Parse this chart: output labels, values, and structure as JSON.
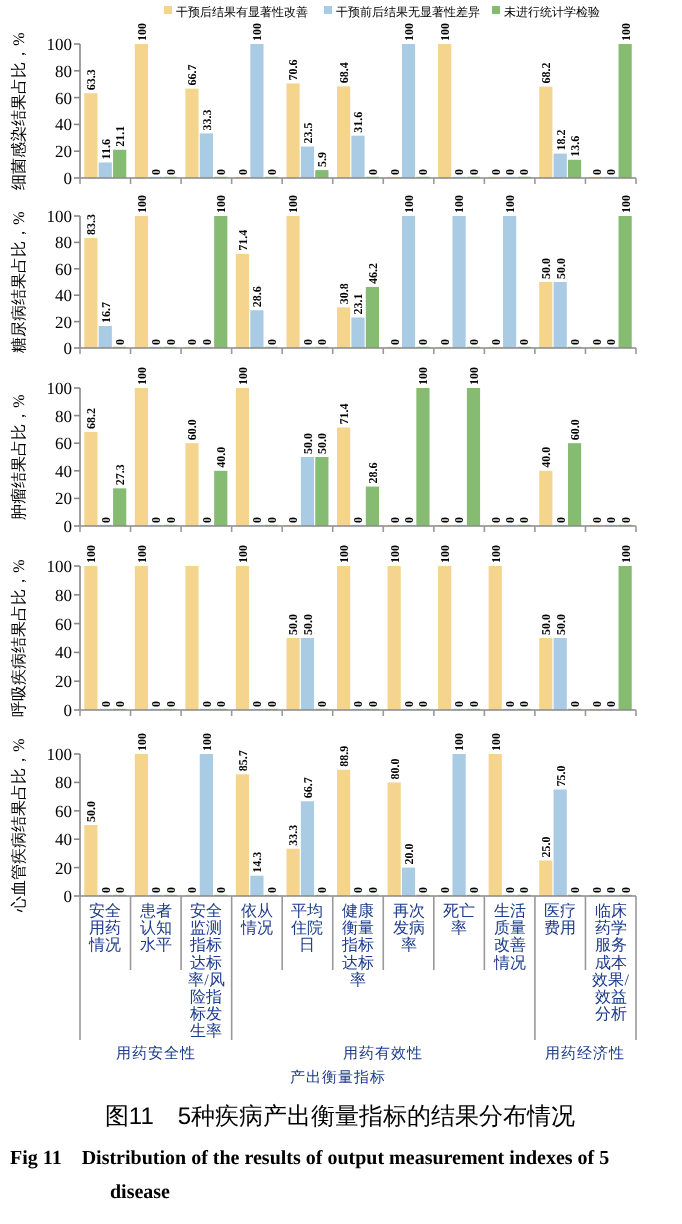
{
  "chart_data": [
    {
      "type": "bar",
      "categories": [
        "安全用药情况",
        "患者认知水平",
        "安全监测指标达标率/风险指标发生率",
        "依从情况",
        "平均住院日",
        "健康衡量指标达标率",
        "再次发病率",
        "死亡率",
        "生活质量改善情况",
        "医疗费用",
        "临床药学服务成本效果/效益分析"
      ],
      "ylabel": "细菌感染结果占比，%",
      "ylim": [
        0,
        100
      ],
      "yticks": [
        0,
        20,
        40,
        60,
        80,
        100
      ],
      "tick_labels": "y",
      "legend": "top",
      "series": [
        {
          "name": "干预后结果有显著性改善",
          "color": "#f5d58e",
          "values": [
            63.3,
            100,
            66.7,
            0,
            70.6,
            68.4,
            0,
            100,
            0,
            68.2,
            0
          ],
          "value_labels": [
            "63.3",
            "100",
            "66.7",
            "0",
            "70.6",
            "68.4",
            "0",
            "100",
            "0",
            "68.2",
            "0"
          ]
        },
        {
          "name": "干预前后结果无显著性差异",
          "color": "#a9cbe4",
          "values": [
            11.6,
            0,
            33.3,
            100,
            23.5,
            31.6,
            100,
            0,
            0,
            18.2,
            0
          ],
          "value_labels": [
            "11.6",
            "0",
            "33.3",
            "100",
            "23.5",
            "31.6",
            "100",
            "0",
            "0",
            "18.2",
            "0"
          ]
        },
        {
          "name": "未进行统计学检验",
          "color": "#86bb72",
          "values": [
            21.1,
            0,
            0,
            0,
            5.9,
            0,
            0,
            0,
            0,
            13.6,
            100
          ],
          "value_labels": [
            "21.1",
            "0",
            "0",
            "0",
            "5.9",
            "0",
            "0",
            "0",
            "0",
            "13.6",
            "100"
          ]
        }
      ]
    },
    {
      "type": "bar",
      "categories": [
        "安全用药情况",
        "患者认知水平",
        "安全监测指标达标率/风险指标发生率",
        "依从情况",
        "平均住院日",
        "健康衡量指标达标率",
        "再次发病率",
        "死亡率",
        "生活质量改善情况",
        "医疗费用",
        "临床药学服务成本效果/效益分析"
      ],
      "ylabel": "糖尿病结果占比，%",
      "ylim": [
        0,
        100
      ],
      "yticks": [
        0,
        20,
        40,
        60,
        80,
        100
      ],
      "tick_labels": "y",
      "series": [
        {
          "color": "#f5d58e",
          "values": [
            83.3,
            100,
            0,
            71.4,
            100,
            30.8,
            0,
            0,
            0,
            50.0,
            0
          ],
          "value_labels": [
            "83.3",
            "100",
            "0",
            "71.4",
            "100",
            "30.8",
            "0",
            "0",
            "0",
            "50.0",
            "0"
          ]
        },
        {
          "color": "#a9cbe4",
          "values": [
            16.7,
            0,
            0,
            28.6,
            0,
            23.1,
            100,
            100,
            100,
            50.0,
            0
          ],
          "value_labels": [
            "16.7",
            "0",
            "0",
            "28.6",
            "0",
            "23.1",
            "100",
            "100",
            "100",
            "50.0",
            "0"
          ]
        },
        {
          "color": "#86bb72",
          "values": [
            0,
            0,
            100,
            0,
            0,
            46.2,
            0,
            0,
            0,
            0,
            100
          ],
          "value_labels": [
            "0",
            "0",
            "100",
            "0",
            "0",
            "46.2",
            "0",
            "0",
            "0",
            "0",
            "100"
          ]
        }
      ]
    },
    {
      "type": "bar",
      "categories": [
        "安全用药情况",
        "患者认知水平",
        "安全监测指标达标率/风险指标发生率",
        "依从情况",
        "平均住院日",
        "健康衡量指标达标率",
        "再次发病率",
        "死亡率",
        "生活质量改善情况",
        "医疗费用",
        "临床药学服务成本效果/效益分析"
      ],
      "ylabel": "肿瘤结果占比，%",
      "ylim": [
        0,
        100
      ],
      "yticks": [
        0,
        20,
        40,
        60,
        80,
        100
      ],
      "tick_labels": "y",
      "series": [
        {
          "color": "#f5d58e",
          "values": [
            68.2,
            100,
            60.0,
            100,
            0,
            71.4,
            0,
            0,
            0,
            40.0,
            0
          ],
          "value_labels": [
            "68.2",
            "100",
            "60.0",
            "100",
            "0",
            "71.4",
            "0",
            "0",
            "0",
            "40.0",
            "0"
          ]
        },
        {
          "color": "#a9cbe4",
          "values": [
            0,
            0,
            0,
            0,
            50.0,
            0,
            0,
            0,
            0,
            0,
            0
          ],
          "value_labels": [
            "0",
            "0",
            "0",
            "0",
            "50.0",
            "0",
            "0",
            "0",
            "0",
            "0",
            "0"
          ]
        },
        {
          "color": "#86bb72",
          "values": [
            27.3,
            0,
            40.0,
            0,
            50.0,
            28.6,
            100,
            100,
            0,
            60.0,
            0
          ],
          "value_labels": [
            "27.3",
            "0",
            "40.0",
            "0",
            "50.0",
            "28.6",
            "100",
            "100",
            "0",
            "60.0",
            "0"
          ]
        }
      ]
    },
    {
      "type": "bar",
      "categories": [
        "安全用药情况",
        "患者认知水平",
        "安全监测指标达标率/风险指标发生率",
        "依从情况",
        "平均住院日",
        "健康衡量指标达标率",
        "再次发病率",
        "死亡率",
        "生活质量改善情况",
        "医疗费用",
        "临床药学服务成本效果/效益分析"
      ],
      "ylabel": "呼吸疾病结果占比，%",
      "ylim": [
        0,
        100
      ],
      "yticks": [
        0,
        20,
        40,
        60,
        80,
        100
      ],
      "tick_labels": "y",
      "series": [
        {
          "color": "#f5d58e",
          "values": [
            100,
            100,
            100,
            100,
            50.0,
            100,
            100,
            100,
            100,
            50.0,
            0
          ],
          "value_labels": [
            "100",
            "100",
            null,
            "100",
            "50.0",
            "100",
            "100",
            "100",
            "100",
            "50.0",
            "0"
          ]
        },
        {
          "color": "#a9cbe4",
          "values": [
            0,
            0,
            0,
            0,
            50.0,
            0,
            0,
            0,
            0,
            50.0,
            0
          ],
          "value_labels": [
            "0",
            "0",
            "0",
            "0",
            "50.0",
            "0",
            "0",
            "0",
            "0",
            "50.0",
            "0"
          ]
        },
        {
          "color": "#86bb72",
          "values": [
            0,
            0,
            0,
            0,
            0,
            0,
            0,
            0,
            0,
            0,
            100
          ],
          "value_labels": [
            "0",
            "0",
            "0",
            "0",
            "0",
            "0",
            "0",
            "0",
            "0",
            "0",
            "100"
          ]
        }
      ]
    },
    {
      "type": "bar",
      "categories": [
        "安全用药情况",
        "患者认知水平",
        "安全监测指标达标率/风险指标发生率",
        "依从情况",
        "平均住院日",
        "健康衡量指标达标率",
        "再次发病率",
        "死亡率",
        "生活质量改善情况",
        "医疗费用",
        "临床药学服务成本效果/效益分析"
      ],
      "ylabel": "心血管疾病结果占比，%",
      "xlabel": "产出衡量指标",
      "ylim": [
        0,
        100
      ],
      "yticks": [
        0,
        20,
        40,
        60,
        80,
        100
      ],
      "series": [
        {
          "color": "#f5d58e",
          "values": [
            50.0,
            100,
            0,
            85.7,
            33.3,
            88.9,
            80.0,
            0,
            100,
            25.0,
            0
          ],
          "value_labels": [
            "50.0",
            "100",
            "0",
            "85.7",
            "33.3",
            "88.9",
            "80.0",
            "0",
            "100",
            "25.0",
            "0"
          ]
        },
        {
          "color": "#a9cbe4",
          "values": [
            0,
            0,
            100,
            14.3,
            66.7,
            0,
            20.0,
            100,
            0,
            75.0,
            0
          ],
          "value_labels": [
            "0",
            "0",
            "100",
            "14.3",
            "66.7",
            "0",
            "20.0",
            "100",
            "0",
            "75.0",
            "0"
          ]
        },
        {
          "color": "#86bb72",
          "values": [
            0,
            0,
            0,
            0,
            0,
            0,
            0,
            0,
            0,
            0,
            0
          ],
          "value_labels": [
            "0",
            "0",
            "0",
            "0",
            "0",
            "0",
            "0",
            "0",
            "0",
            "0",
            "0"
          ]
        }
      ],
      "annotations": [
        "用药安全性",
        "用药有效性",
        "用药经济性",
        "图11　5种疾病产出衡量指标的结果分布情况",
        "Fig 11　Distribution of the results of output measurement indexes of 5 disease"
      ]
    }
  ]
}
